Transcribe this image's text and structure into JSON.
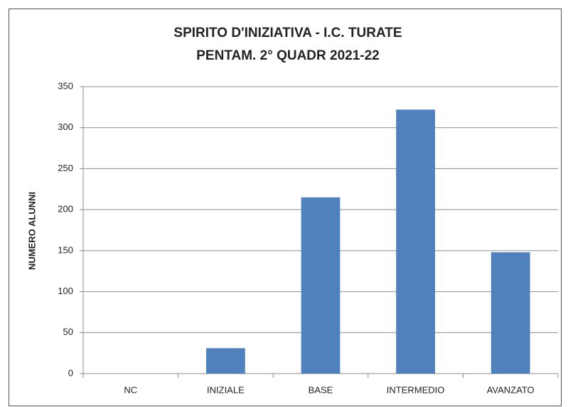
{
  "chart_data": {
    "type": "bar",
    "title": "SPIRITO D'INIZIATIVA  - I.C. TURATE",
    "subtitle": "PENTAM. 2° QUADR 2021-22",
    "y_label": "NUMERO ALUNNI",
    "categories": [
      "NC",
      "INIZIALE",
      "BASE",
      "INTERMEDIO",
      "AVANZATO"
    ],
    "values": [
      0,
      31,
      215,
      322,
      148
    ],
    "color": "#4f81bd",
    "ylim": [
      0,
      350
    ],
    "yticks": [
      0,
      50,
      100,
      150,
      200,
      250,
      300,
      350
    ],
    "grid": true
  }
}
